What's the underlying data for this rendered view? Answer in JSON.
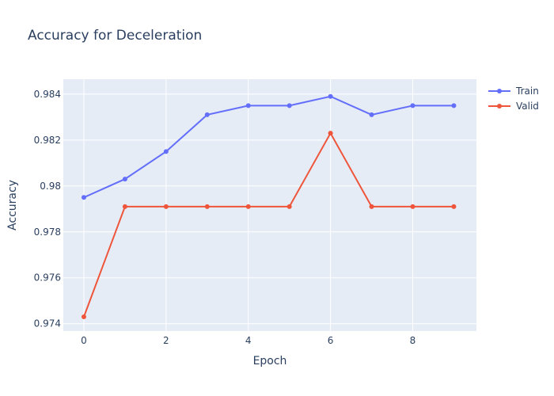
{
  "chart_data": {
    "type": "line",
    "title": "Accuracy for Deceleration",
    "xlabel": "Epoch",
    "ylabel": "Accuracy",
    "x": [
      0,
      1,
      2,
      3,
      4,
      5,
      6,
      7,
      8,
      9
    ],
    "xlim": [
      -0.5,
      9.55
    ],
    "ylim": [
      0.97368,
      0.98465
    ],
    "x_ticks": [
      0,
      2,
      4,
      6,
      8
    ],
    "x_tick_labels": [
      "0",
      "2",
      "4",
      "6",
      "8"
    ],
    "y_ticks": [
      0.974,
      0.976,
      0.978,
      0.98,
      0.982,
      0.984
    ],
    "y_tick_labels": [
      "0.974",
      "0.976",
      "0.978",
      "0.98",
      "0.982",
      "0.984"
    ],
    "grid": true,
    "legend_position": "top-right",
    "series": [
      {
        "name": "Train",
        "color": "#636efa",
        "values": [
          0.9795,
          0.9803,
          0.9815,
          0.9831,
          0.9835,
          0.9835,
          0.9839,
          0.9831,
          0.9835,
          0.9835
        ]
      },
      {
        "name": "Valid",
        "color": "#ef553b",
        "values": [
          0.9743,
          0.9791,
          0.9791,
          0.9791,
          0.9791,
          0.9791,
          0.9823,
          0.9791,
          0.9791,
          0.9791
        ]
      }
    ],
    "plot_background": "#e5ecf6",
    "grid_color": "#ffffff",
    "text_color": "#2a3f5f"
  }
}
